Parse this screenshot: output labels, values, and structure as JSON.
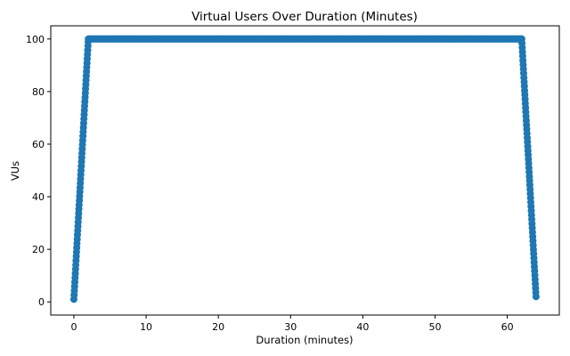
{
  "chart_data": {
    "type": "scatter",
    "title": "Virtual Users Over Duration (Minutes)",
    "xlabel": "Duration (minutes)",
    "ylabel": "VUs",
    "xlim": [
      -3.2,
      67.2
    ],
    "ylim": [
      -5,
      105
    ],
    "xticks": [
      0,
      10,
      20,
      30,
      40,
      50,
      60
    ],
    "yticks": [
      0,
      20,
      40,
      60,
      80,
      100
    ],
    "grid": false,
    "legend": "none",
    "marker_color": "#1f77b4",
    "series": [
      {
        "ramp_up": {
          "x_start": 0,
          "x_end": 2,
          "y_start": 1,
          "y_end": 100,
          "step": 0.033
        },
        "plateau": {
          "x_start": 2,
          "x_end": 62,
          "y": 100,
          "step": 0.1
        },
        "ramp_down": {
          "x_start": 62,
          "x_end": 64,
          "y_start": 100,
          "y_end": 1,
          "step": 0.033
        }
      }
    ]
  }
}
